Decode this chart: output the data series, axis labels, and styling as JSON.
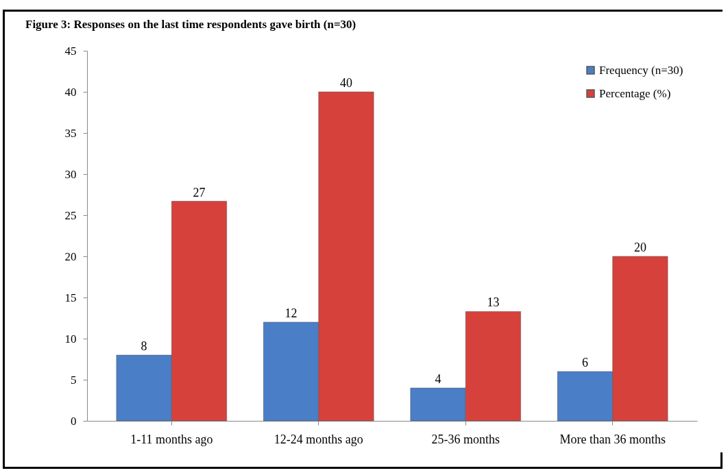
{
  "chart_data": {
    "type": "bar",
    "title": "Figure 3: Responses on the last time respondents gave birth (n=30)",
    "categories": [
      "1-11 months ago",
      "12-24 months ago",
      "25-36 months",
      "More than 36 months"
    ],
    "series": [
      {
        "name": "Frequency (n=30)",
        "color": "#4a7ec6",
        "values": [
          8,
          12,
          4,
          6
        ],
        "value_labels": [
          "8",
          "12",
          "4",
          "6"
        ]
      },
      {
        "name": "Percentage (%)",
        "color": "#d6413c",
        "values": [
          26.7,
          40,
          13.3,
          20
        ],
        "value_labels": [
          "27",
          "40",
          "13",
          "20"
        ]
      }
    ],
    "ylim": [
      0,
      45
    ],
    "yticks": [
      0,
      5,
      10,
      15,
      20,
      25,
      30,
      35,
      40,
      45
    ],
    "grid": false,
    "legend": "top right"
  }
}
